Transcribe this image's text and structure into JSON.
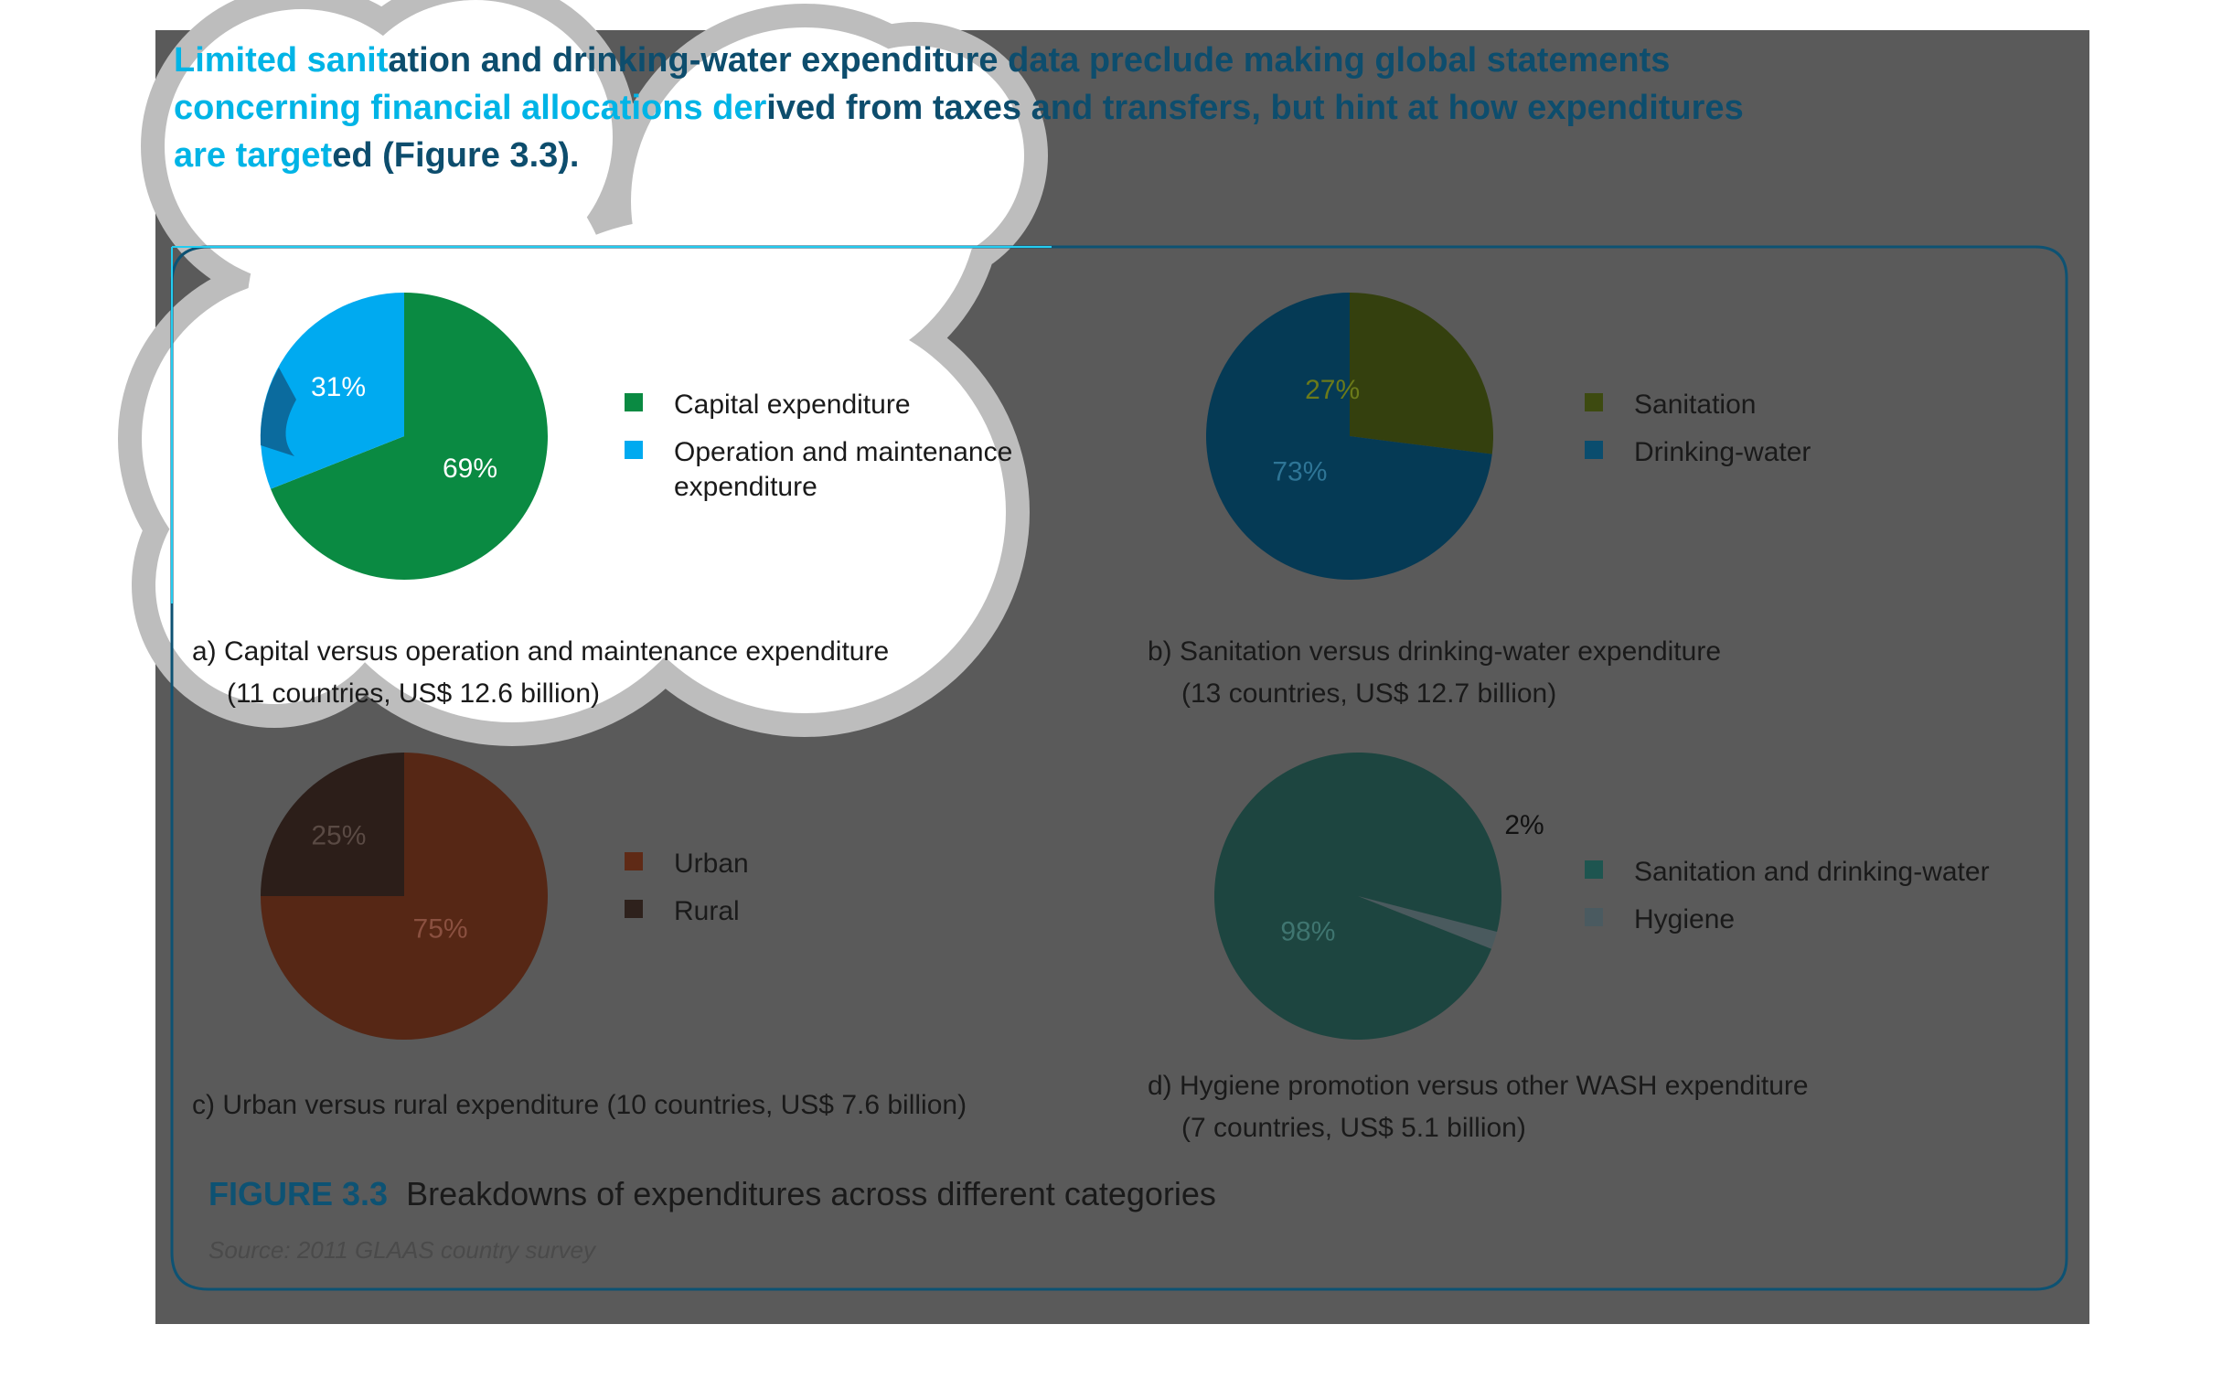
{
  "heading": {
    "lines": [
      "Limited sanitation and drinking-water expenditure data preclude making global statements",
      "concerning financial allocations derived from taxes and transfers, but hint at how expenditures",
      "are targeted (Figure 3.3)."
    ]
  },
  "figure": {
    "label": "FIGURE 3.3",
    "title": "Breakdowns of expenditures across different categories",
    "source": "Source: 2011 GLAAS country survey"
  },
  "colors": {
    "dim_overlay": "#5a5a5a",
    "spotlight": "#ffffff",
    "heading_accent": "#00b4e6",
    "heading_dim": "#0d4d6d",
    "frame": "#0d5273",
    "figure_label": "#0d5273",
    "caption": "#1a1a1a",
    "source": "#4a4a4a",
    "highlight_rect": "#22ccf0"
  },
  "chart_data": [
    {
      "type": "pie",
      "caption": [
        "a) Capital versus operation and maintenance expenditure",
        "(11 countries, US$ 12.6 billion)"
      ],
      "slices": [
        {
          "name": "Capital expenditure",
          "value": 69,
          "label": "69%",
          "color": "#0a8a42",
          "dim_color": "#0a8a42",
          "label_color": "#ffffff"
        },
        {
          "name": "Operation and maintenance expenditure",
          "value": 31,
          "label": "31%",
          "color": "#00aaf0",
          "dim_color": "#0b6b9e",
          "label_color": "#ffffff"
        }
      ],
      "legend": [
        {
          "lines": [
            "Capital expenditure"
          ],
          "color": "#0a8a42"
        },
        {
          "lines": [
            "Operation and maintenance",
            "expenditure"
          ],
          "color": "#00aaf0"
        }
      ]
    },
    {
      "type": "pie",
      "caption": [
        "b) Sanitation versus drinking-water expenditure",
        "(13 countries, US$ 12.7 billion)"
      ],
      "slices": [
        {
          "name": "Sanitation",
          "value": 27,
          "label": "27%",
          "color": "#34400e",
          "label_color": "#6b7a1a"
        },
        {
          "name": "Drinking-water",
          "value": 73,
          "label": "73%",
          "color": "#053a55",
          "label_color": "#2e7596"
        }
      ],
      "legend": [
        {
          "lines": [
            "Sanitation"
          ],
          "color": "#3d4a10"
        },
        {
          "lines": [
            "Drinking-water"
          ],
          "color": "#0a4d6e"
        }
      ]
    },
    {
      "type": "pie",
      "caption": [
        "c) Urban versus rural expenditure (10 countries, US$ 7.6 billion)"
      ],
      "slices": [
        {
          "name": "Urban",
          "value": 75,
          "label": "75%",
          "color": "#562715",
          "label_color": "#8a5040"
        },
        {
          "name": "Rural",
          "value": 25,
          "label": "25%",
          "color": "#2c1e19",
          "label_color": "#5a4a44"
        }
      ],
      "legend": [
        {
          "lines": [
            "Urban"
          ],
          "color": "#5f2a16"
        },
        {
          "lines": [
            "Rural"
          ],
          "color": "#2e211c"
        }
      ]
    },
    {
      "type": "pie",
      "caption": [
        "d) Hygiene promotion versus other WASH expenditure",
        "(7 countries, US$ 5.1 billion)"
      ],
      "slices": [
        {
          "name": "Sanitation and drinking-water",
          "value": 98,
          "label": "98%",
          "color": "#1d4540",
          "label_color": "#3f7570"
        },
        {
          "name": "Hygiene",
          "value": 2,
          "label": "2%",
          "color": "#4a5a5e",
          "label_color": "#111111",
          "outside": true
        }
      ],
      "legend": [
        {
          "lines": [
            "Sanitation and drinking-water"
          ],
          "color": "#1e5550"
        },
        {
          "lines": [
            "Hygiene"
          ],
          "color": "#4a5a60"
        }
      ]
    }
  ]
}
